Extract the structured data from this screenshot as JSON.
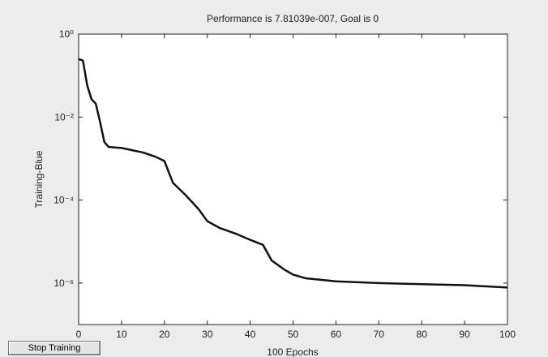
{
  "chart_data": {
    "type": "line",
    "title": "Performance is 7.81039e-007, Goal is 0",
    "ylabel": "Training-Blue",
    "xlabel": "100 Epochs",
    "log_y": true,
    "color": "#111111",
    "x": [
      0,
      1,
      2,
      3,
      4,
      5,
      6,
      7,
      10,
      15,
      18,
      20,
      22,
      25,
      28,
      30,
      33,
      37,
      40,
      43,
      45,
      48,
      50,
      53,
      60,
      70,
      80,
      90,
      100
    ],
    "values": [
      0.25,
      0.23,
      0.058,
      0.027,
      0.021,
      0.0076,
      0.0025,
      0.0019,
      0.0018,
      0.0014,
      0.0011,
      0.00087,
      0.00026,
      0.00013,
      6e-05,
      3.1e-05,
      2.1e-05,
      1.5e-05,
      1.1e-05,
      8.3e-06,
      3.5e-06,
      2.1e-06,
      1.6e-06,
      1.3e-06,
      1.1e-06,
      1e-06,
      9.4e-07,
      8.9e-07,
      7.81e-07
    ],
    "xlim": [
      0,
      100
    ],
    "xticks": [
      0,
      10,
      20,
      30,
      40,
      50,
      60,
      70,
      80,
      90,
      100
    ],
    "ylim": [
      1e-07,
      1
    ],
    "yticks": [
      {
        "value": 1,
        "label": "10⁰"
      },
      {
        "value": 0.01,
        "label": "10⁻²"
      },
      {
        "value": 0.0001,
        "label": "10⁻⁴"
      },
      {
        "value": 1e-06,
        "label": "10⁻⁶"
      }
    ]
  },
  "button": {
    "label": "Stop Training"
  }
}
